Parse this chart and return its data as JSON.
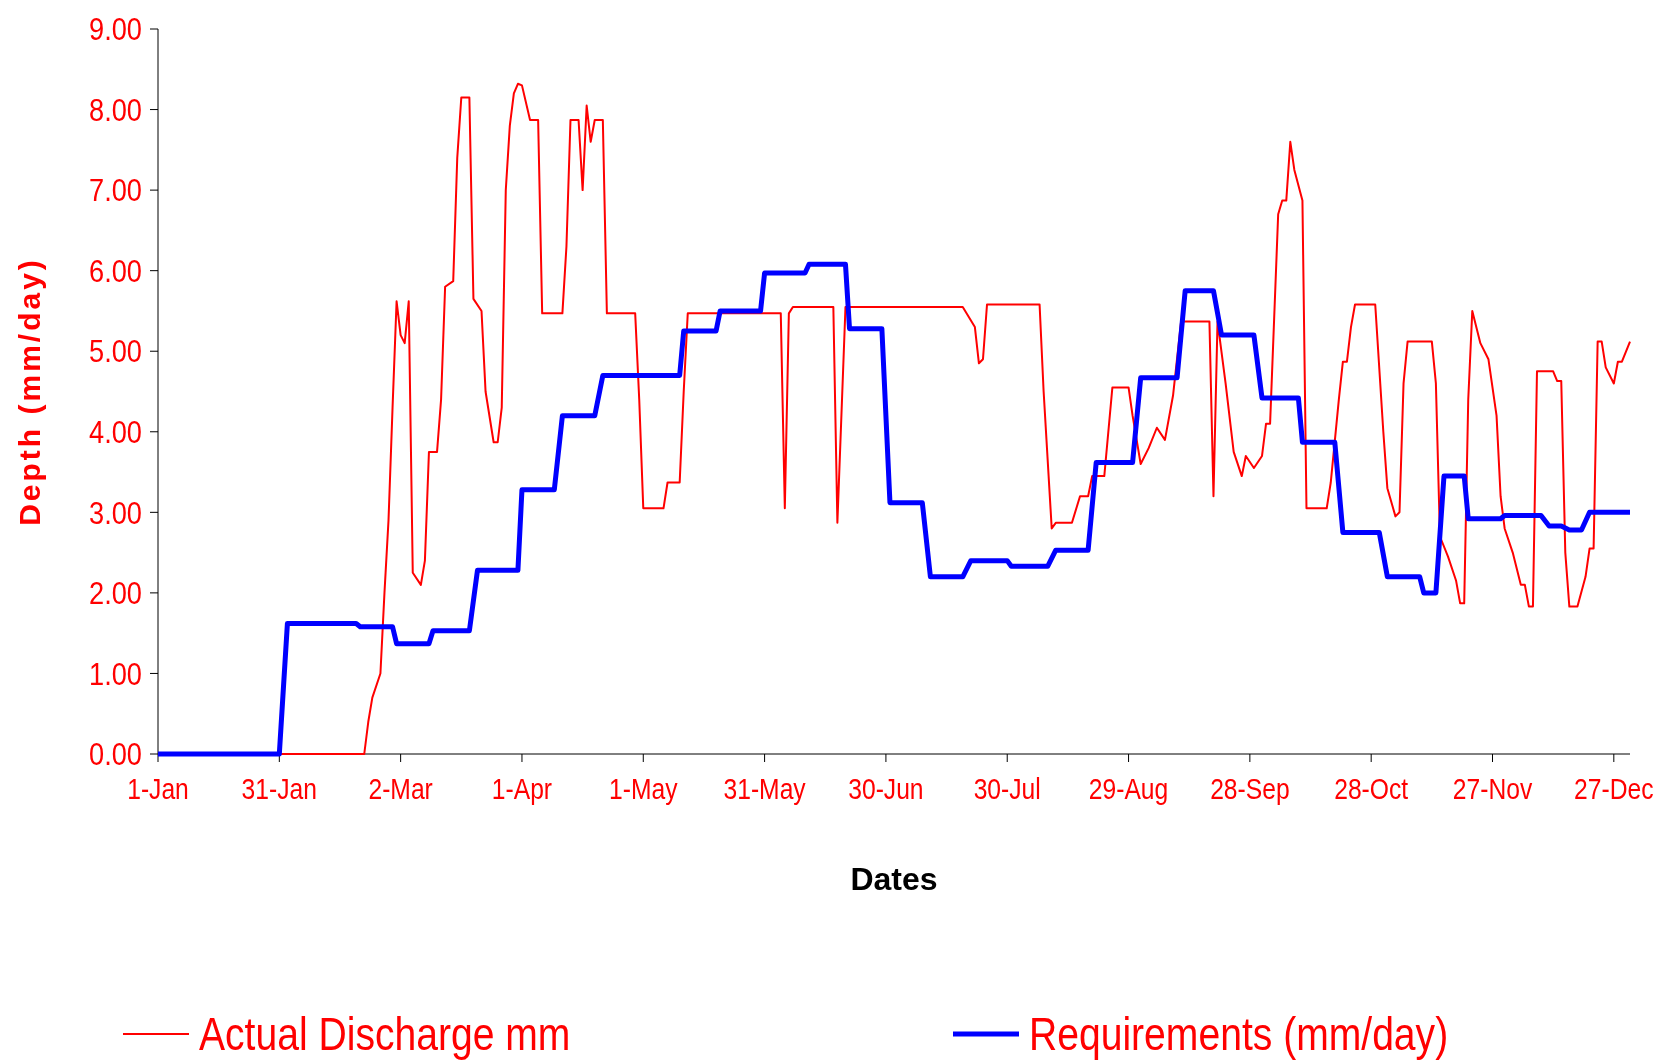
{
  "chart_data": {
    "type": "line",
    "xlabel": "Dates",
    "ylabel": "Depth (mm/day)",
    "xlim": [
      "--01-01",
      "--12-31"
    ],
    "ylim": [
      0,
      9
    ],
    "yticks": [
      {
        "value": 0,
        "label": "0.00"
      },
      {
        "value": 1,
        "label": "1.00"
      },
      {
        "value": 2,
        "label": "2.00"
      },
      {
        "value": 3,
        "label": "3.00"
      },
      {
        "value": 4,
        "label": "4.00"
      },
      {
        "value": 5,
        "label": "5.00"
      },
      {
        "value": 6,
        "label": "6.00"
      },
      {
        "value": 7,
        "label": "7.00"
      },
      {
        "value": 8,
        "label": "8.00"
      },
      {
        "value": 9,
        "label": "9.00"
      }
    ],
    "xticks": [
      {
        "value": "--01-01",
        "label": "1-Jan"
      },
      {
        "value": "--01-31",
        "label": "31-Jan"
      },
      {
        "value": "--03-02",
        "label": "2-Mar"
      },
      {
        "value": "--04-01",
        "label": "1-Apr"
      },
      {
        "value": "--05-01",
        "label": "1-May"
      },
      {
        "value": "--05-31",
        "label": "31-May"
      },
      {
        "value": "--06-30",
        "label": "30-Jun"
      },
      {
        "value": "--07-30",
        "label": "30-Jul"
      },
      {
        "value": "--08-29",
        "label": "29-Aug"
      },
      {
        "value": "--09-28",
        "label": "28-Sep"
      },
      {
        "value": "--10-28",
        "label": "28-Oct"
      },
      {
        "value": "--11-27",
        "label": "27-Nov"
      },
      {
        "value": "--12-27",
        "label": "27-Dec"
      }
    ],
    "grid": false,
    "legend": "bottom",
    "marker": "none",
    "line_style": "solid",
    "series": [
      {
        "name": "Actual Discharge mm",
        "color": "#ff0000",
        "x": [
          "--01-01",
          "--02-21",
          "--02-22",
          "--02-23",
          "--02-25",
          "--02-26",
          "--02-27",
          "--02-28",
          "--03-01",
          "--03-02",
          "--03-03",
          "--03-04",
          "--03-05",
          "--03-07",
          "--03-08",
          "--03-09",
          "--03-11",
          "--03-12",
          "--03-13",
          "--03-15",
          "--03-16",
          "--03-17",
          "--03-19",
          "--03-20",
          "--03-22",
          "--03-23",
          "--03-25",
          "--03-26",
          "--03-27",
          "--03-28",
          "--03-29",
          "--03-30",
          "--03-31",
          "--04-01",
          "--04-03",
          "--04-05",
          "--04-06",
          "--04-11",
          "--04-12",
          "--04-13",
          "--04-15",
          "--04-16",
          "--04-17",
          "--04-18",
          "--04-19",
          "--04-21",
          "--04-22",
          "--04-29",
          "--04-30",
          "--05-01",
          "--05-06",
          "--05-07",
          "--05-10",
          "--05-11",
          "--05-12",
          "--06-04",
          "--06-05",
          "--06-06",
          "--06-07",
          "--06-17",
          "--06-18",
          "--06-20",
          "--07-19",
          "--07-22",
          "--07-23",
          "--07-24",
          "--07-25",
          "--08-07",
          "--08-08",
          "--08-10",
          "--08-11",
          "--08-15",
          "--08-17",
          "--08-19",
          "--08-20",
          "--08-23",
          "--08-25",
          "--08-29",
          "--08-30",
          "--09-01",
          "--09-03",
          "--09-05",
          "--09-07",
          "--09-09",
          "--09-11",
          "--09-18",
          "--09-19",
          "--09-20",
          "--09-22",
          "--09-24",
          "--09-26",
          "--09-27",
          "--09-29",
          "--10-01",
          "--10-02",
          "--10-03",
          "--10-04",
          "--10-05",
          "--10-06",
          "--10-07",
          "--10-08",
          "--10-09",
          "--10-11",
          "--10-12",
          "--10-17",
          "--10-18",
          "--10-20",
          "--10-21",
          "--10-22",
          "--10-23",
          "--10-24",
          "--10-29",
          "--10-31",
          "--11-01",
          "--11-03",
          "--11-04",
          "--11-05",
          "--11-06",
          "--11-12",
          "--11-13",
          "--11-14",
          "--11-16",
          "--11-18",
          "--11-19",
          "--11-20",
          "--11-21",
          "--11-22",
          "--11-24",
          "--11-26",
          "--11-28",
          "--11-29",
          "--11-30",
          "--12-02",
          "--12-04",
          "--12-05",
          "--12-06",
          "--12-07",
          "--12-08",
          "--12-12",
          "--12-13",
          "--12-14",
          "--12-15",
          "--12-16",
          "--12-18",
          "--12-20",
          "--12-21",
          "--12-22",
          "--12-23",
          "--12-24",
          "--12-25",
          "--12-27",
          "--12-28",
          "--12-29",
          "--12-31"
        ],
        "values": [
          0,
          0,
          0.4,
          0.7,
          1.0,
          2.0,
          2.9,
          4.3,
          5.62,
          5.2,
          5.1,
          5.62,
          2.25,
          2.1,
          2.4,
          3.75,
          3.75,
          4.4,
          5.8,
          5.87,
          7.4,
          8.15,
          8.15,
          5.65,
          5.5,
          4.5,
          3.87,
          3.87,
          4.3,
          7.0,
          7.8,
          8.2,
          8.32,
          8.3,
          7.87,
          7.87,
          5.47,
          5.47,
          6.3,
          7.87,
          7.87,
          7.0,
          8.05,
          7.6,
          7.87,
          7.87,
          5.47,
          5.47,
          4.4,
          3.05,
          3.05,
          3.37,
          3.37,
          4.5,
          5.47,
          5.47,
          3.05,
          5.47,
          5.55,
          5.55,
          2.87,
          5.55,
          5.55,
          5.3,
          4.85,
          4.9,
          5.58,
          5.58,
          4.5,
          2.8,
          2.87,
          2.87,
          3.2,
          3.2,
          3.45,
          3.45,
          4.55,
          4.55,
          4.2,
          3.6,
          3.8,
          4.05,
          3.9,
          4.45,
          5.37,
          5.37,
          3.2,
          5.37,
          4.6,
          3.75,
          3.45,
          3.7,
          3.55,
          3.7,
          4.1,
          4.1,
          5.4,
          6.7,
          6.87,
          6.87,
          7.6,
          7.25,
          6.87,
          3.05,
          3.05,
          3.37,
          4.4,
          4.87,
          4.87,
          5.3,
          5.58,
          5.58,
          4.0,
          3.3,
          2.95,
          3.0,
          4.6,
          5.12,
          5.12,
          4.6,
          2.7,
          2.45,
          2.15,
          1.87,
          1.87,
          4.4,
          5.5,
          5.1,
          4.9,
          4.2,
          3.2,
          2.8,
          2.5,
          2.1,
          2.1,
          1.83,
          1.83,
          4.75,
          4.75,
          4.63,
          4.63,
          2.5,
          1.83,
          1.83,
          2.2,
          2.55,
          2.55,
          5.12,
          5.12,
          4.8,
          4.6,
          4.87,
          4.87,
          5.12
        ]
      },
      {
        "name": "Requirements (mm/day)",
        "color": "#0000ff",
        "x": [
          "--01-01",
          "--01-31",
          "--02-02",
          "--02-19",
          "--02-20",
          "--02-28",
          "--03-01",
          "--03-09",
          "--03-10",
          "--03-19",
          "--03-21",
          "--03-31",
          "--04-01",
          "--04-09",
          "--04-11",
          "--04-19",
          "--04-21",
          "--05-10",
          "--05-11",
          "--05-19",
          "--05-20",
          "--05-30",
          "--05-31",
          "--06-10",
          "--06-11",
          "--06-20",
          "--06-21",
          "--06-29",
          "--07-01",
          "--07-09",
          "--07-11",
          "--07-19",
          "--07-21",
          "--07-30",
          "--07-31",
          "--08-09",
          "--08-11",
          "--08-19",
          "--08-21",
          "--08-30",
          "--09-01",
          "--09-10",
          "--09-12",
          "--09-19",
          "--09-21",
          "--09-29",
          "--10-01",
          "--10-10",
          "--10-11",
          "--10-19",
          "--10-21",
          "--10-30",
          "--11-01",
          "--11-09",
          "--11-10",
          "--11-13",
          "--11-15",
          "--11-20",
          "--11-21",
          "--11-29",
          "--11-30",
          "--12-09",
          "--12-11",
          "--12-14",
          "--12-16",
          "--12-19",
          "--12-21",
          "--12-31"
        ],
        "values": [
          0,
          0,
          1.62,
          1.62,
          1.58,
          1.58,
          1.37,
          1.37,
          1.53,
          1.53,
          2.28,
          2.28,
          3.28,
          3.28,
          4.2,
          4.2,
          4.7,
          4.7,
          5.25,
          5.25,
          5.5,
          5.5,
          5.97,
          5.97,
          6.08,
          6.08,
          5.28,
          5.28,
          3.12,
          3.12,
          2.2,
          2.2,
          2.4,
          2.4,
          2.33,
          2.33,
          2.53,
          2.53,
          3.62,
          3.62,
          4.67,
          4.67,
          5.75,
          5.75,
          5.2,
          5.2,
          4.42,
          4.42,
          3.87,
          3.87,
          2.75,
          2.75,
          2.2,
          2.2,
          2.0,
          2.0,
          3.45,
          3.45,
          2.92,
          2.92,
          2.96,
          2.96,
          2.83,
          2.83,
          2.78,
          2.78,
          3.0,
          3.0
        ]
      }
    ]
  }
}
